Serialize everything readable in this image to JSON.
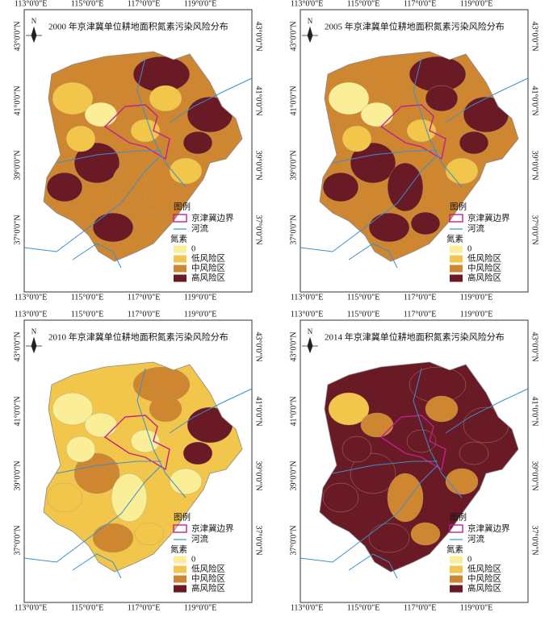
{
  "lon_labels": [
    "113°0'0\"E",
    "115°0'0\"E",
    "117°0'0\"E",
    "119°0'0\"E"
  ],
  "lat_labels": [
    "43°0'0\"N",
    "41°0'0\"N",
    "39°0'0\"N",
    "37°0'0\"N"
  ],
  "north": "N",
  "legend": {
    "heading": "图例",
    "boundary": "京津冀边界",
    "river": "河流",
    "nitrogen": "氮素",
    "classes": [
      {
        "name": "0",
        "color": "#fbee98"
      },
      {
        "name": "低风险区",
        "color": "#f1c64a"
      },
      {
        "name": "中风险区",
        "color": "#cf8630"
      },
      {
        "name": "高风险区",
        "color": "#6a1a24"
      }
    ]
  },
  "panels": [
    {
      "title": "2000 年京津冀单位耕地面积氮素污染风险分布"
    },
    {
      "title": "2005 年京津冀单位耕地面积氮素污染风险分布"
    },
    {
      "title": "2010 年京津冀单位耕地面积氮素污染风险分布"
    },
    {
      "title": "2014 年京津冀单位耕地面积氮素污染风险分布"
    }
  ]
}
